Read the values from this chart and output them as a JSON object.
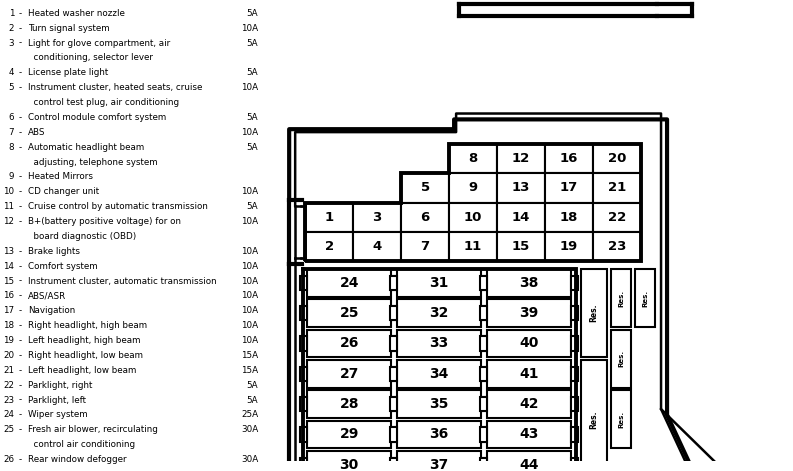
{
  "background_color": "#ffffff",
  "text_color": "#000000",
  "fuse_list": [
    {
      "num": 1,
      "desc": "Heated washer nozzle",
      "amp": "5A"
    },
    {
      "num": 2,
      "desc": "Turn signal system",
      "amp": "10A"
    },
    {
      "num": 3,
      "desc": "Light for glove compartment, air\n  conditioning, selector lever",
      "amp": "5A"
    },
    {
      "num": 4,
      "desc": "License plate light",
      "amp": "5A"
    },
    {
      "num": 5,
      "desc": "Instrument cluster, heated seats, cruise\n  control test plug, air conditioning",
      "amp": "10A"
    },
    {
      "num": 6,
      "desc": "Control module comfort system",
      "amp": "5A"
    },
    {
      "num": 7,
      "desc": "ABS",
      "amp": "10A"
    },
    {
      "num": 8,
      "desc": "Automatic headlight beam\n  adjusting, telephone system",
      "amp": "5A"
    },
    {
      "num": 9,
      "desc": "Heated Mirrors",
      "amp": ""
    },
    {
      "num": 10,
      "desc": "CD changer unit",
      "amp": "10A"
    },
    {
      "num": 11,
      "desc": "Cruise control by automatic transmission",
      "amp": "5A"
    },
    {
      "num": 12,
      "desc": "B+(battery positive voltage) for on\n  board diagnostic (OBD)",
      "amp": "10A"
    },
    {
      "num": 13,
      "desc": "Brake lights",
      "amp": "10A"
    },
    {
      "num": 14,
      "desc": "Comfort system",
      "amp": "10A"
    },
    {
      "num": 15,
      "desc": "Instrument cluster, automatic transmission",
      "amp": "10A"
    },
    {
      "num": 16,
      "desc": "ABS/ASR",
      "amp": "10A"
    },
    {
      "num": 17,
      "desc": "Navigation",
      "amp": "10A"
    },
    {
      "num": 18,
      "desc": "Right headlight, high beam",
      "amp": "10A"
    },
    {
      "num": 19,
      "desc": "Left headlight, high beam",
      "amp": "10A"
    },
    {
      "num": 20,
      "desc": "Right headlight, low beam",
      "amp": "15A"
    },
    {
      "num": 21,
      "desc": "Left headlight, low beam",
      "amp": "15A"
    },
    {
      "num": 22,
      "desc": "Parklight, right",
      "amp": "5A"
    },
    {
      "num": 23,
      "desc": "Parklight, left",
      "amp": "5A"
    },
    {
      "num": 24,
      "desc": "Wiper system",
      "amp": "25A"
    },
    {
      "num": 25,
      "desc": "Fresh air blower, recirculating\n  control air conditioning",
      "amp": "30A"
    },
    {
      "num": 26,
      "desc": "Rear window defogger",
      "amp": "30A"
    }
  ],
  "row1_nums": [
    8,
    12,
    16,
    20
  ],
  "row2_nums": [
    5,
    9,
    13,
    17,
    21
  ],
  "row3_nums": [
    1,
    3,
    6,
    10,
    14,
    18,
    22
  ],
  "row4_nums": [
    2,
    4,
    7,
    11,
    15,
    19,
    23
  ],
  "large_col1": [
    24,
    25,
    26,
    27,
    28,
    29,
    30
  ],
  "large_col2": [
    31,
    32,
    33,
    34,
    35,
    36,
    37
  ],
  "large_col3": [
    38,
    39,
    40,
    41,
    42,
    43,
    44
  ]
}
